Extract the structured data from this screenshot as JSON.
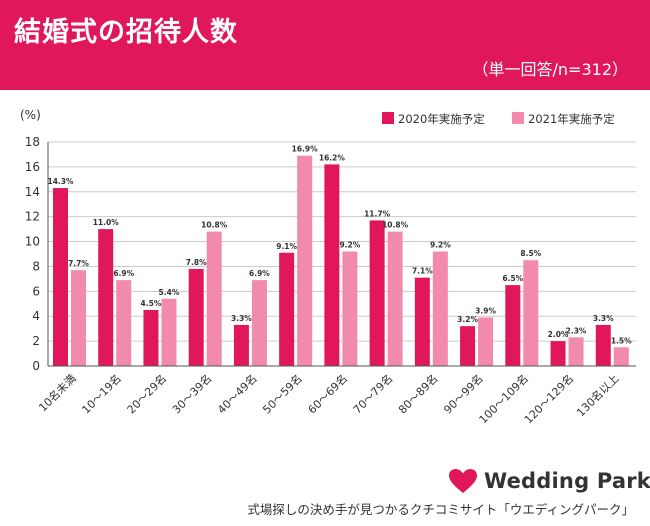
{
  "header": {
    "title": "結婚式の招待人数",
    "subtitle": "（単一回答/n=312）"
  },
  "colors": {
    "brand": "#e0185b",
    "series_2020": "#e0185b",
    "series_2021": "#f28aab"
  },
  "footer": {
    "logo_icon": "heart-icon",
    "logo_text": "Wedding Park",
    "tagline": "式場探しの決め手が見つかるクチコミサイト「ウエディングパーク」"
  },
  "chart_data": {
    "type": "bar",
    "ylabel": "(%)",
    "ylim": [
      0,
      18
    ],
    "yticks": [
      "0",
      "2",
      "4",
      "6",
      "8",
      "10",
      "12",
      "14",
      "16",
      "18"
    ],
    "grid": true,
    "legend_position": "top-right",
    "categories": [
      "10名未満",
      "10〜19名",
      "20〜29名",
      "30〜39名",
      "40〜49名",
      "50〜59名",
      "60〜69名",
      "70〜79名",
      "80〜89名",
      "90〜99名",
      "100〜109名",
      "120〜129名",
      "130名以上"
    ],
    "series": [
      {
        "name": "2020年実施予定",
        "values": [
          14.3,
          11.0,
          4.5,
          7.8,
          3.3,
          9.1,
          16.2,
          11.7,
          7.1,
          3.2,
          6.5,
          2.0,
          3.3
        ],
        "labels": [
          "14.3%",
          "11.0%",
          "4.5%",
          "7.8%",
          "3.3%",
          "9.1%",
          "16.2%",
          "11.7%",
          "7.1%",
          "3.2%",
          "6.5%",
          "2.0%",
          "3.3%"
        ]
      },
      {
        "name": "2021年実施予定",
        "values": [
          7.7,
          6.9,
          5.4,
          10.8,
          6.9,
          16.9,
          9.2,
          10.8,
          9.2,
          3.9,
          8.5,
          2.3,
          1.5
        ],
        "labels": [
          "7.7%",
          "6.9%",
          "5.4%",
          "10.8%",
          "6.9%",
          "16.9%",
          "9.2%",
          "10.8%",
          "9.2%",
          "3.9%",
          "8.5%",
          "2.3%",
          "1.5%"
        ]
      }
    ]
  }
}
